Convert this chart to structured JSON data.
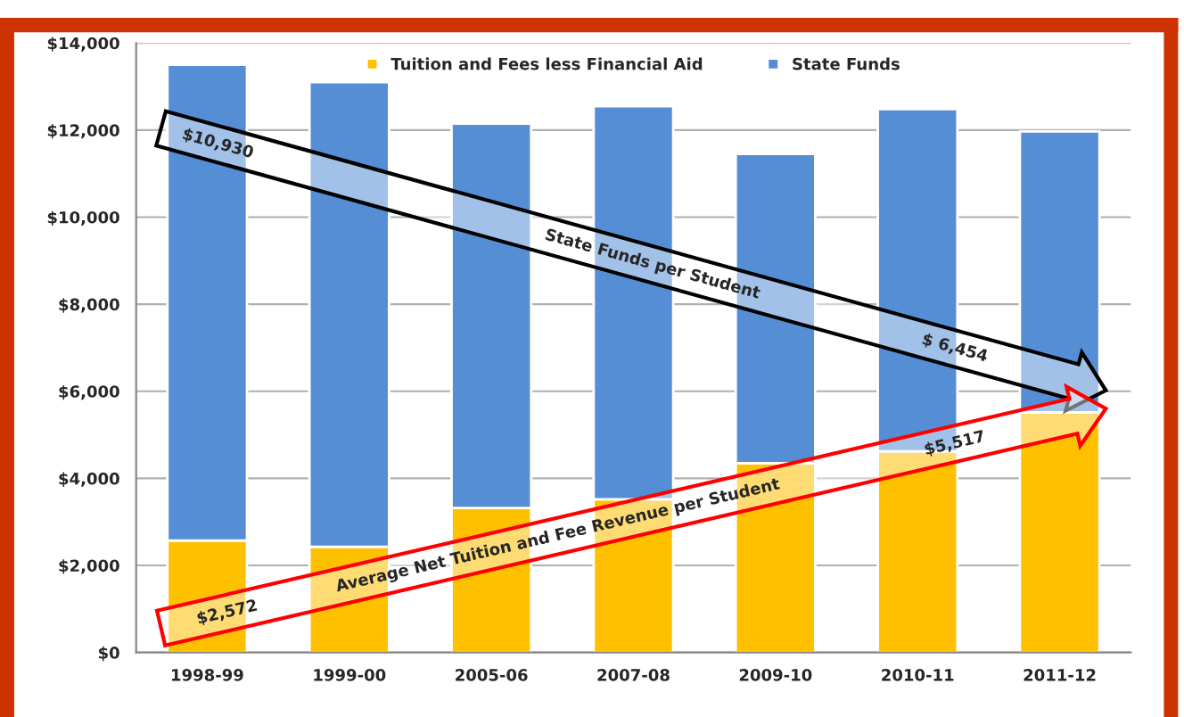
{
  "chart_data": {
    "type": "bar",
    "stacked": true,
    "categories": [
      "1998-99",
      "1999-00",
      "2005-06",
      "2007-08",
      "2009-10",
      "2010-11",
      "2011-12"
    ],
    "series": [
      {
        "name": "Tuition and Fees less Financial Aid",
        "color": "#ffc000",
        "values": [
          2572,
          2430,
          3320,
          3520,
          4350,
          4620,
          5517
        ]
      },
      {
        "name": "State Funds",
        "color": "#558ed5",
        "values": [
          10930,
          10670,
          8830,
          9030,
          7100,
          7860,
          6454
        ]
      }
    ],
    "ylim": [
      0,
      14000
    ],
    "yticks": [
      {
        "value": 0,
        "label": "$0"
      },
      {
        "value": 2000,
        "label": "$2,000"
      },
      {
        "value": 4000,
        "label": "$4,000"
      },
      {
        "value": 6000,
        "label": "$6,000"
      },
      {
        "value": 8000,
        "label": "$8,000"
      },
      {
        "value": 10000,
        "label": "$10,000"
      },
      {
        "value": 12000,
        "label": "$12,000"
      },
      {
        "value": 14000,
        "label": "$14,000"
      }
    ],
    "grid": "y",
    "legend": "top",
    "annotations": [
      "$10,930",
      "State Funds per Student",
      "$ 6,454",
      "$2,572",
      "Average Net Tuition and Fee Revenue per Student",
      "$5,517"
    ]
  }
}
